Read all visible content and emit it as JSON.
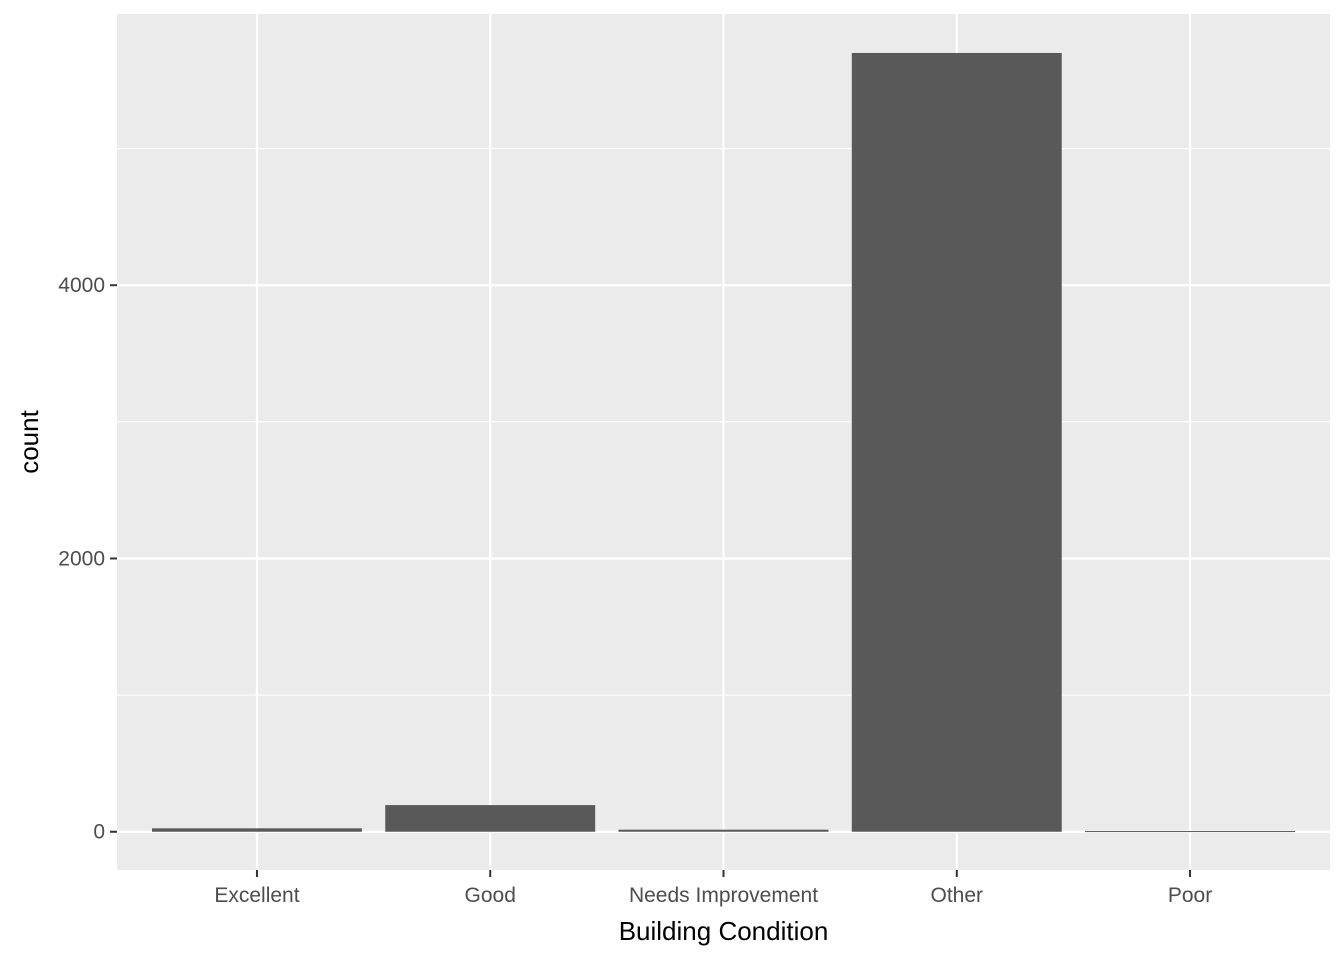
{
  "chart_data": {
    "type": "bar",
    "title": "",
    "xlabel": "Building Condition",
    "ylabel": "count",
    "categories": [
      "Excellent",
      "Good",
      "Needs Improvement",
      "Other",
      "Poor"
    ],
    "values": [
      25,
      195,
      15,
      5700,
      5
    ],
    "ylim": [
      -280,
      5985
    ],
    "yticks": [
      0,
      2000,
      4000
    ],
    "y_tick_labels": [
      "0",
      "2000",
      "4000"
    ],
    "grid": true,
    "legend": "none"
  },
  "colors": {
    "panel_background": "#ebebeb",
    "gridline": "#ffffff",
    "bar_fill": "#595959",
    "tick_mark": "#333333",
    "tick_label": "#4d4d4d",
    "axis_title": "#000000"
  }
}
